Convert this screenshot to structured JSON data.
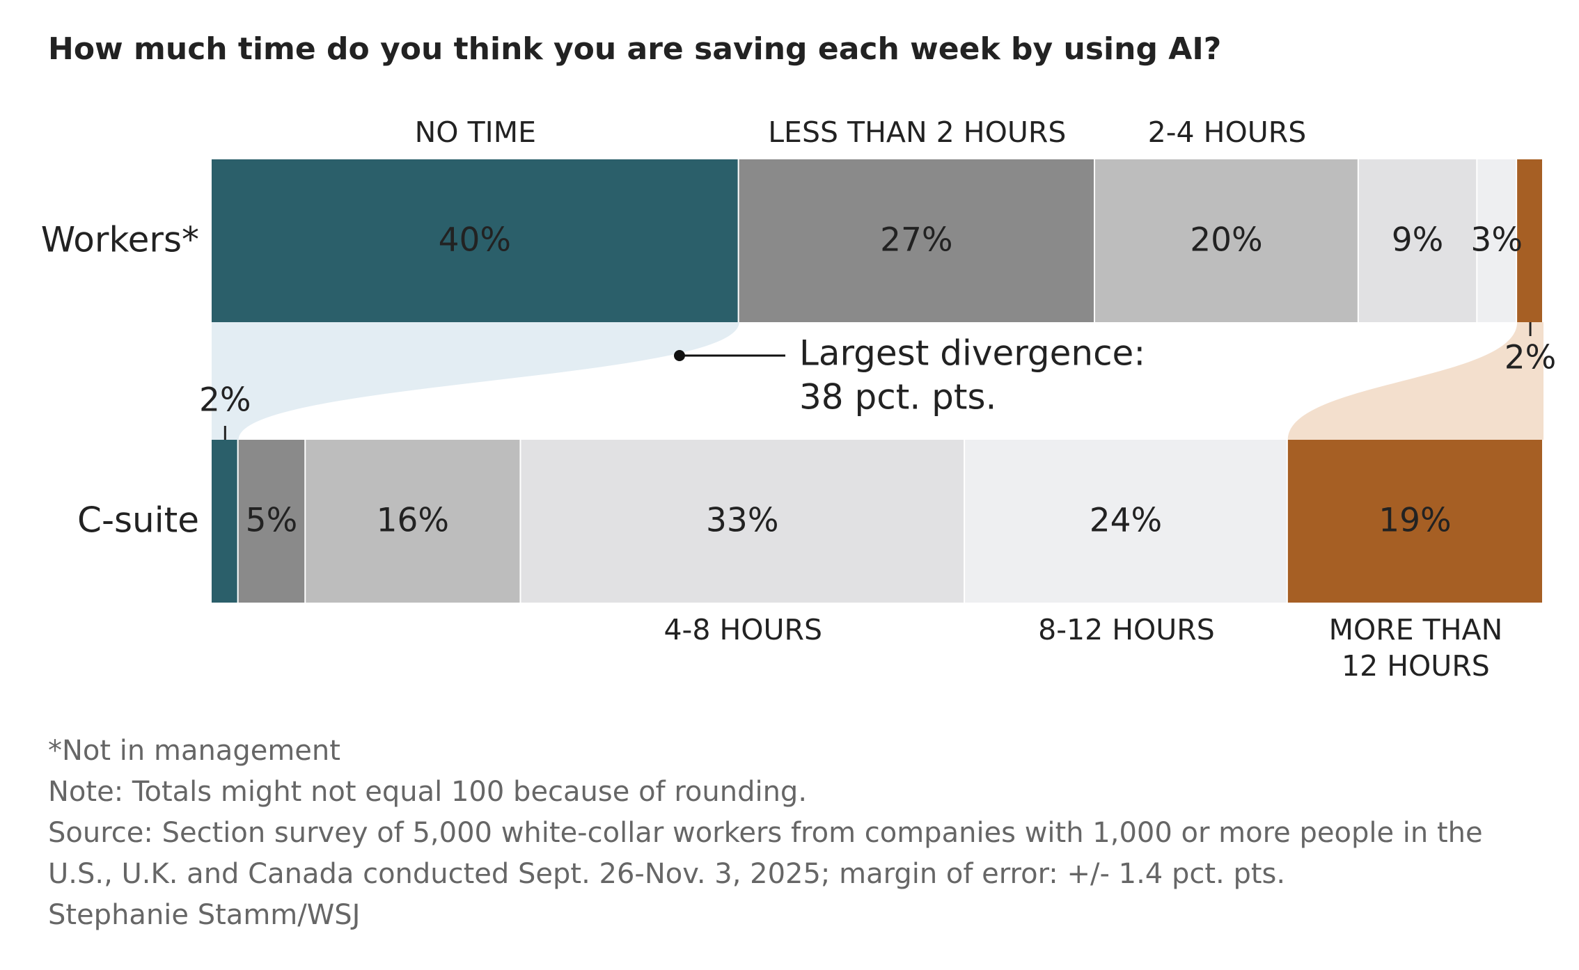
{
  "chart_data": {
    "type": "stacked-bar-horizontal",
    "title": "How much time do you think you are saving each week by using AI?",
    "categories": [
      "Workers*",
      "C-suite"
    ],
    "series": [
      {
        "name": "NO TIME",
        "color": "#2b5f6a",
        "values": [
          40,
          2
        ],
        "value_labels": [
          "40%",
          "2%"
        ]
      },
      {
        "name": "LESS THAN 2 HOURS",
        "color": "#8a8a8a",
        "values": [
          27,
          5
        ],
        "value_labels": [
          "27%",
          "5%"
        ]
      },
      {
        "name": "2-4 HOURS",
        "color": "#bdbdbd",
        "values": [
          20,
          16
        ],
        "value_labels": [
          "20%",
          "16%"
        ]
      },
      {
        "name": "4-8 HOURS",
        "color": "#e1e1e3",
        "values": [
          9,
          33
        ],
        "value_labels": [
          "9%",
          "33%"
        ]
      },
      {
        "name": "8-12 HOURS",
        "color": "#eeeff1",
        "values": [
          3,
          24
        ],
        "value_labels": [
          "3%",
          "24%"
        ]
      },
      {
        "name": "MORE THAN 12 HOURS",
        "color": "#a65f24",
        "values": [
          2,
          19
        ],
        "value_labels": [
          "2%",
          "19%"
        ]
      }
    ],
    "annotation": [
      "Largest divergence:",
      "38 pct. pts."
    ],
    "footnotes": [
      "*Not in management",
      "Note: Totals might not equal 100 because of rounding.",
      "Source: Section survey of 5,000 white-collar workers from companies with 1,000 or more people in the U.S., U.K. and Canada conducted Sept. 26-Nov. 3, 2025; margin of error: +/- 1.4 pct. pts.",
      "Stephanie Stamm/WSJ"
    ]
  }
}
